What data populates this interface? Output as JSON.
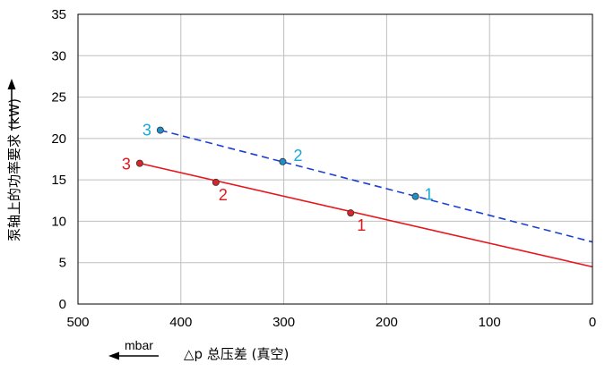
{
  "chart_data": {
    "type": "line",
    "xlabel": "△p 总压差 (真空)",
    "ylabel": "泵轴上的功率要求 (kW)",
    "x_unit": "mbar",
    "xlim": [
      500,
      0
    ],
    "ylim": [
      0,
      35
    ],
    "xticks": [
      500,
      400,
      300,
      200,
      100,
      0
    ],
    "yticks": [
      0,
      5,
      10,
      15,
      20,
      25,
      30,
      35
    ],
    "grid": true,
    "series": [
      {
        "style": "dashed",
        "color": "#1a3fd6",
        "marker_color": "#1f8fc8",
        "label_color": "#19a7d6",
        "x": [
          420,
          0
        ],
        "y": [
          21,
          7.5
        ],
        "points": [
          {
            "label": "1",
            "x": 172,
            "y": 13
          },
          {
            "label": "2",
            "x": 301,
            "y": 17.2
          },
          {
            "label": "3",
            "x": 420,
            "y": 21
          }
        ]
      },
      {
        "style": "solid",
        "color": "#e8151b",
        "marker_color": "#d8242a",
        "label_color": "#e8151b",
        "x": [
          440,
          0
        ],
        "y": [
          17,
          4.5
        ],
        "points": [
          {
            "label": "1",
            "x": 235,
            "y": 11
          },
          {
            "label": "2",
            "x": 366,
            "y": 14.7
          },
          {
            "label": "3",
            "x": 440,
            "y": 17
          }
        ]
      }
    ]
  }
}
